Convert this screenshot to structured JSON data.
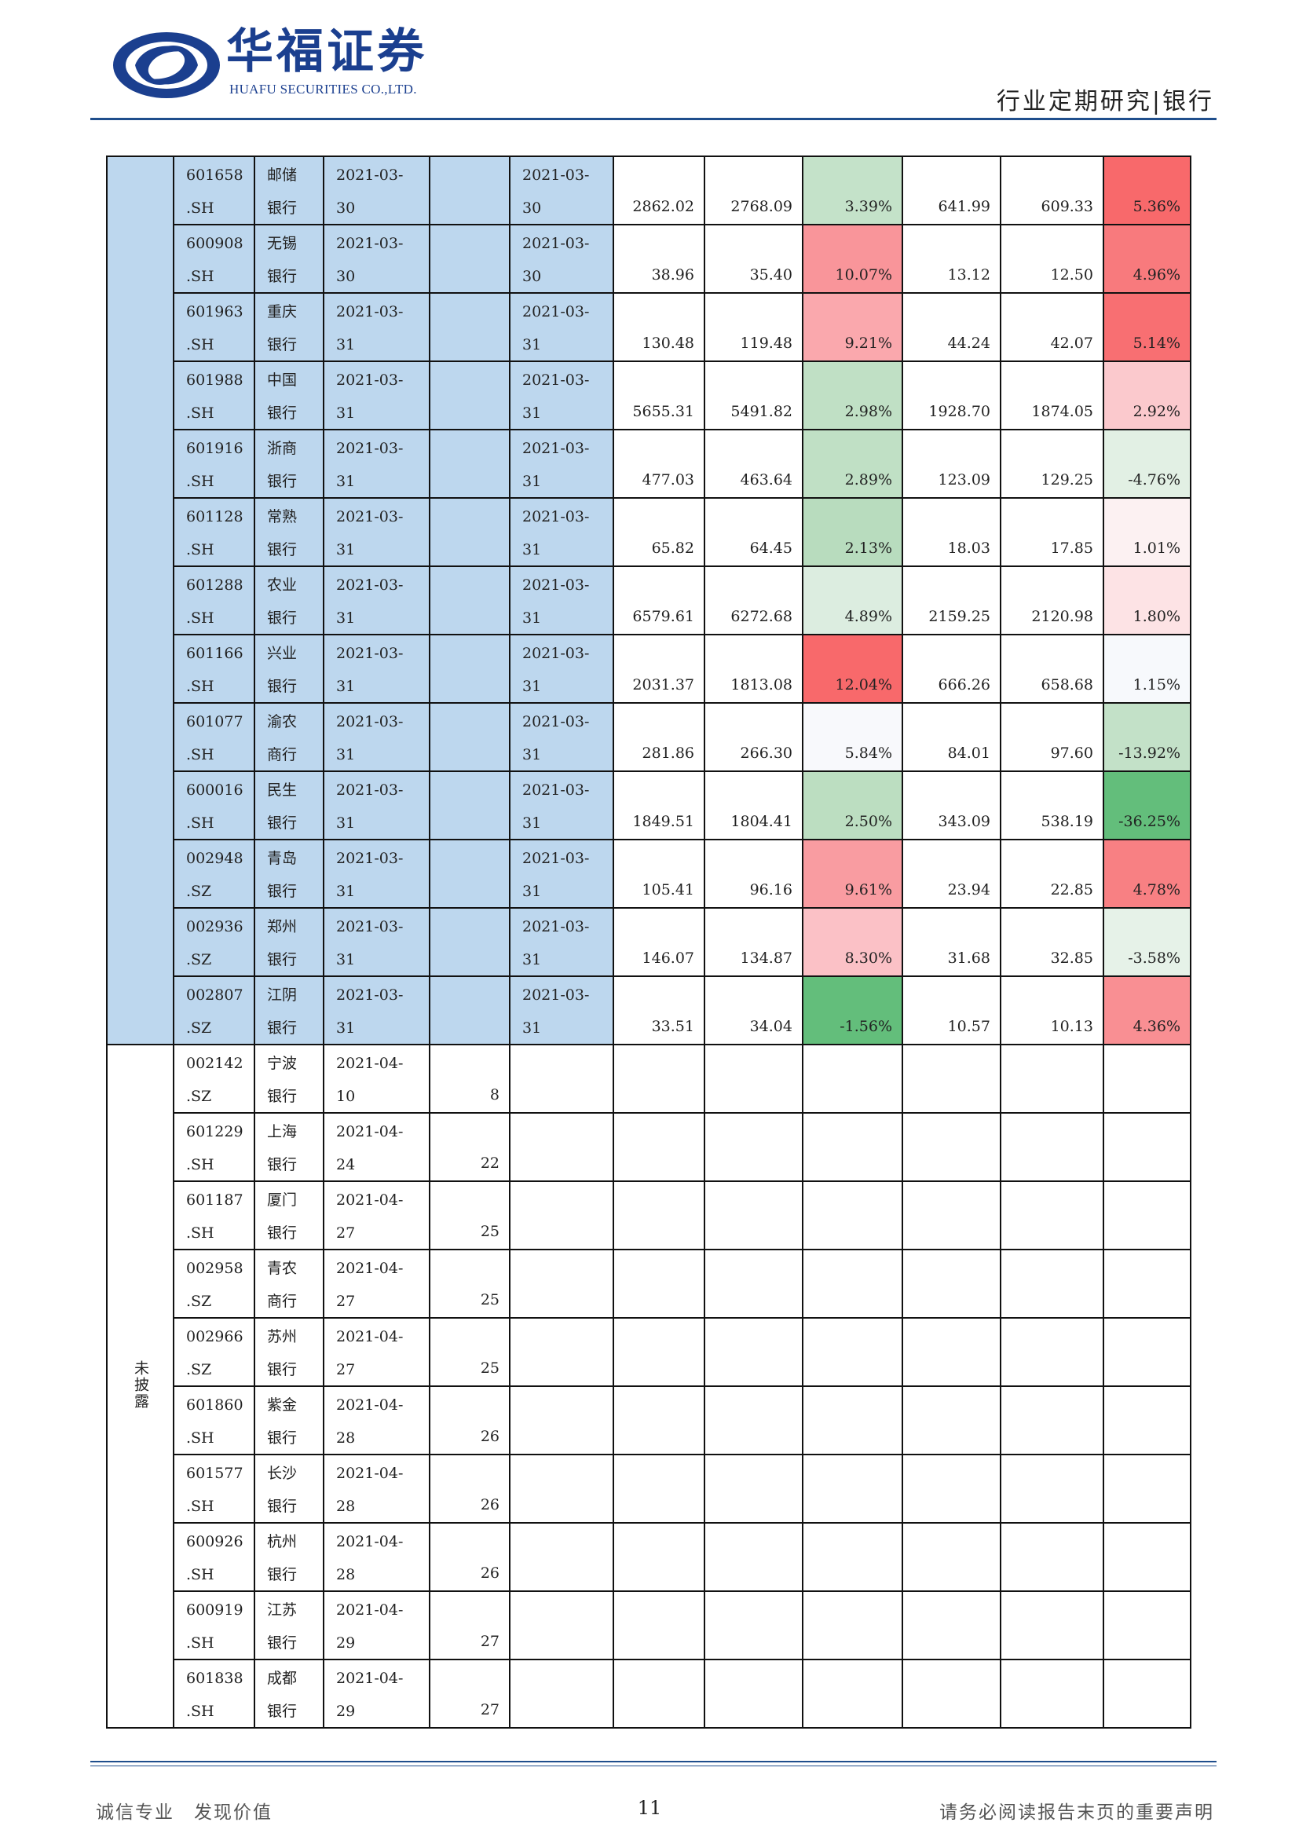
{
  "header": {
    "brand_cn": "华福证券",
    "brand_en": "HUAFU SECURITIES CO.,LTD.",
    "report_type": "行业定期研究|银行"
  },
  "colors": {
    "brand_blue": "#1b3f8f",
    "rule_blue": "#1f4e8c",
    "disclosed_cell_blue": "#bdd7ee"
  },
  "table": {
    "disclosed_rows": [
      {
        "code_top": "601658",
        "code_bot": ".SH",
        "name_top": "邮储",
        "name_bot": "银行",
        "date_top": "2021-03-",
        "date_bot": "30",
        "days": "",
        "date2_top": "2021-03-",
        "date2_bot": "30",
        "v1": "2862.02",
        "v2": "2768.09",
        "v3": "3.39%",
        "v3_color": "#c4e2c9",
        "v4": "641.99",
        "v5": "609.33",
        "v6": "5.36%",
        "v6_color": "#f8696b"
      },
      {
        "code_top": "600908",
        "code_bot": ".SH",
        "name_top": "无锡",
        "name_bot": "银行",
        "date_top": "2021-03-",
        "date_bot": "30",
        "days": "",
        "date2_top": "2021-03-",
        "date2_bot": "30",
        "v1": "38.96",
        "v2": "35.40",
        "v3": "10.07%",
        "v3_color": "#f9959a",
        "v4": "13.12",
        "v5": "12.50",
        "v6": "4.96%",
        "v6_color": "#f87a7d"
      },
      {
        "code_top": "601963",
        "code_bot": ".SH",
        "name_top": "重庆",
        "name_bot": "银行",
        "date_top": "2021-03-",
        "date_bot": "31",
        "days": "",
        "date2_top": "2021-03-",
        "date2_bot": "31",
        "v1": "130.48",
        "v2": "119.48",
        "v3": "9.21%",
        "v3_color": "#faa8ad",
        "v4": "44.24",
        "v5": "42.07",
        "v6": "5.14%",
        "v6_color": "#f86f72"
      },
      {
        "code_top": "601988",
        "code_bot": ".SH",
        "name_top": "中国",
        "name_bot": "银行",
        "date_top": "2021-03-",
        "date_bot": "31",
        "days": "",
        "date2_top": "2021-03-",
        "date2_bot": "31",
        "v1": "5655.31",
        "v2": "5491.82",
        "v3": "2.98%",
        "v3_color": "#c0e0c5",
        "v4": "1928.70",
        "v5": "1874.05",
        "v6": "2.92%",
        "v6_color": "#fbc9cd"
      },
      {
        "code_top": "601916",
        "code_bot": ".SH",
        "name_top": "浙商",
        "name_bot": "银行",
        "date_top": "2021-03-",
        "date_bot": "31",
        "days": "",
        "date2_top": "2021-03-",
        "date2_bot": "31",
        "v1": "477.03",
        "v2": "463.64",
        "v3": "2.89%",
        "v3_color": "#c0e0c5",
        "v4": "123.09",
        "v5": "129.25",
        "v6": "-4.76%",
        "v6_color": "#e2f0e4"
      },
      {
        "code_top": "601128",
        "code_bot": ".SH",
        "name_top": "常熟",
        "name_bot": "银行",
        "date_top": "2021-03-",
        "date_bot": "31",
        "days": "",
        "date2_top": "2021-03-",
        "date2_bot": "31",
        "v1": "65.82",
        "v2": "64.45",
        "v3": "2.13%",
        "v3_color": "#b8dcbe",
        "v4": "18.03",
        "v5": "17.85",
        "v6": "1.01%",
        "v6_color": "#fcf1f2"
      },
      {
        "code_top": "601288",
        "code_bot": ".SH",
        "name_top": "农业",
        "name_bot": "银行",
        "date_top": "2021-03-",
        "date_bot": "31",
        "days": "",
        "date2_top": "2021-03-",
        "date2_bot": "31",
        "v1": "6579.61",
        "v2": "6272.68",
        "v3": "4.89%",
        "v3_color": "#dcede0",
        "v4": "2159.25",
        "v5": "2120.98",
        "v6": "1.80%",
        "v6_color": "#fde3e5"
      },
      {
        "code_top": "601166",
        "code_bot": ".SH",
        "name_top": "兴业",
        "name_bot": "银行",
        "date_top": "2021-03-",
        "date_bot": "31",
        "days": "",
        "date2_top": "2021-03-",
        "date2_bot": "31",
        "v1": "2031.37",
        "v2": "1813.08",
        "v3": "12.04%",
        "v3_color": "#f8696b",
        "v4": "666.26",
        "v5": "658.68",
        "v6": "1.15%",
        "v6_color": "#f7f9fc"
      },
      {
        "code_top": "601077",
        "code_bot": ".SH",
        "name_top": "渝农",
        "name_bot": "商行",
        "date_top": "2021-03-",
        "date_bot": "31",
        "days": "",
        "date2_top": "2021-03-",
        "date2_bot": "31",
        "v1": "281.86",
        "v2": "266.30",
        "v3": "5.84%",
        "v3_color": "#f8f9fc",
        "v4": "84.01",
        "v5": "97.60",
        "v6": "-13.92%",
        "v6_color": "#c3e1c8"
      },
      {
        "code_top": "600016",
        "code_bot": ".SH",
        "name_top": "民生",
        "name_bot": "银行",
        "date_top": "2021-03-",
        "date_bot": "31",
        "days": "",
        "date2_top": "2021-03-",
        "date2_bot": "31",
        "v1": "1849.51",
        "v2": "1804.41",
        "v3": "2.50%",
        "v3_color": "#bcdec1",
        "v4": "343.09",
        "v5": "538.19",
        "v6": "-36.25%",
        "v6_color": "#63be7b"
      },
      {
        "code_top": "002948",
        "code_bot": ".SZ",
        "name_top": "青岛",
        "name_bot": "银行",
        "date_top": "2021-03-",
        "date_bot": "31",
        "days": "",
        "date2_top": "2021-03-",
        "date2_bot": "31",
        "v1": "105.41",
        "v2": "96.16",
        "v3": "9.61%",
        "v3_color": "#f99ca1",
        "v4": "23.94",
        "v5": "22.85",
        "v6": "4.78%",
        "v6_color": "#f88083"
      },
      {
        "code_top": "002936",
        "code_bot": ".SZ",
        "name_top": "郑州",
        "name_bot": "银行",
        "date_top": "2021-03-",
        "date_bot": "31",
        "days": "",
        "date2_top": "2021-03-",
        "date2_bot": "31",
        "v1": "146.07",
        "v2": "134.87",
        "v3": "8.30%",
        "v3_color": "#fbc1c6",
        "v4": "31.68",
        "v5": "32.85",
        "v6": "-3.58%",
        "v6_color": "#e6f2e8"
      },
      {
        "code_top": "002807",
        "code_bot": ".SZ",
        "name_top": "江阴",
        "name_bot": "银行",
        "date_top": "2021-03-",
        "date_bot": "31",
        "days": "",
        "date2_top": "2021-03-",
        "date2_bot": "31",
        "v1": "33.51",
        "v2": "34.04",
        "v3": "-1.56%",
        "v3_color": "#63be7b",
        "v4": "10.57",
        "v5": "10.13",
        "v6": "4.36%",
        "v6_color": "#f98f93"
      }
    ],
    "undisclosed_label": "未披露",
    "undisclosed_rows": [
      {
        "code_top": "002142",
        "code_bot": ".SZ",
        "name_top": "宁波",
        "name_bot": "银行",
        "date_top": "2021-04-",
        "date_bot": "10",
        "days": "8"
      },
      {
        "code_top": "601229",
        "code_bot": ".SH",
        "name_top": "上海",
        "name_bot": "银行",
        "date_top": "2021-04-",
        "date_bot": "24",
        "days": "22"
      },
      {
        "code_top": "601187",
        "code_bot": ".SH",
        "name_top": "厦门",
        "name_bot": "银行",
        "date_top": "2021-04-",
        "date_bot": "27",
        "days": "25"
      },
      {
        "code_top": "002958",
        "code_bot": ".SZ",
        "name_top": "青农",
        "name_bot": "商行",
        "date_top": "2021-04-",
        "date_bot": "27",
        "days": "25"
      },
      {
        "code_top": "002966",
        "code_bot": ".SZ",
        "name_top": "苏州",
        "name_bot": "银行",
        "date_top": "2021-04-",
        "date_bot": "27",
        "days": "25"
      },
      {
        "code_top": "601860",
        "code_bot": ".SH",
        "name_top": "紫金",
        "name_bot": "银行",
        "date_top": "2021-04-",
        "date_bot": "28",
        "days": "26"
      },
      {
        "code_top": "601577",
        "code_bot": ".SH",
        "name_top": "长沙",
        "name_bot": "银行",
        "date_top": "2021-04-",
        "date_bot": "28",
        "days": "26"
      },
      {
        "code_top": "600926",
        "code_bot": ".SH",
        "name_top": "杭州",
        "name_bot": "银行",
        "date_top": "2021-04-",
        "date_bot": "28",
        "days": "26"
      },
      {
        "code_top": "600919",
        "code_bot": ".SH",
        "name_top": "江苏",
        "name_bot": "银行",
        "date_top": "2021-04-",
        "date_bot": "29",
        "days": "27"
      },
      {
        "code_top": "601838",
        "code_bot": ".SH",
        "name_top": "成都",
        "name_bot": "银行",
        "date_top": "2021-04-",
        "date_bot": "29",
        "days": "27"
      }
    ]
  },
  "footer": {
    "slogan": "诚信专业　发现价值",
    "page_number": "11",
    "disclaimer": "请务必阅读报告末页的重要声明"
  }
}
